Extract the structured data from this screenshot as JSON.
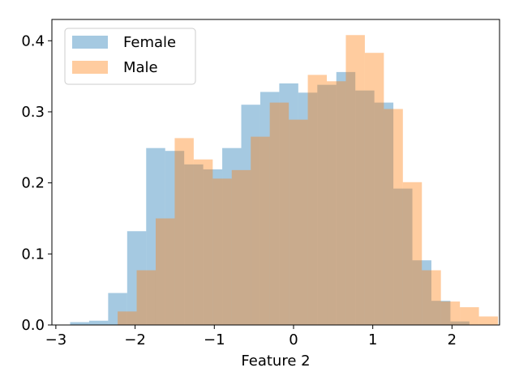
{
  "chart_data": {
    "type": "bar",
    "subtype": "overlaid-histogram",
    "title": "",
    "xlabel": "Feature 2",
    "ylabel": "",
    "xlim": [
      -3.05,
      2.6
    ],
    "ylim": [
      0,
      0.43
    ],
    "xticks": [
      -3,
      -2,
      -1,
      0,
      1,
      2
    ],
    "xtick_labels": [
      "−3",
      "−2",
      "−1",
      "0",
      "1",
      "2"
    ],
    "yticks": [
      0.0,
      0.1,
      0.2,
      0.3,
      0.4
    ],
    "ytick_labels": [
      "0.0",
      "0.1",
      "0.2",
      "0.3",
      "0.4"
    ],
    "grid": false,
    "legend_position": "top-left",
    "series": [
      {
        "name": "Female",
        "color": "#1f77b4",
        "alpha": 0.4,
        "bins": [
          {
            "x0": -2.82,
            "x1": -2.58,
            "value": 0.004
          },
          {
            "x0": -2.58,
            "x1": -2.34,
            "value": 0.006
          },
          {
            "x0": -2.34,
            "x1": -2.1,
            "value": 0.045
          },
          {
            "x0": -2.1,
            "x1": -1.86,
            "value": 0.132
          },
          {
            "x0": -1.86,
            "x1": -1.62,
            "value": 0.249
          },
          {
            "x0": -1.62,
            "x1": -1.38,
            "value": 0.245
          },
          {
            "x0": -1.38,
            "x1": -1.14,
            "value": 0.226
          },
          {
            "x0": -1.14,
            "x1": -0.9,
            "value": 0.219
          },
          {
            "x0": -0.9,
            "x1": -0.66,
            "value": 0.249
          },
          {
            "x0": -0.66,
            "x1": -0.42,
            "value": 0.31
          },
          {
            "x0": -0.42,
            "x1": -0.18,
            "value": 0.328
          },
          {
            "x0": -0.18,
            "x1": 0.06,
            "value": 0.34
          },
          {
            "x0": 0.06,
            "x1": 0.3,
            "value": 0.327
          },
          {
            "x0": 0.3,
            "x1": 0.54,
            "value": 0.338
          },
          {
            "x0": 0.54,
            "x1": 0.78,
            "value": 0.356
          },
          {
            "x0": 0.78,
            "x1": 1.02,
            "value": 0.33
          },
          {
            "x0": 1.02,
            "x1": 1.26,
            "value": 0.313
          },
          {
            "x0": 1.26,
            "x1": 1.5,
            "value": 0.192
          },
          {
            "x0": 1.5,
            "x1": 1.74,
            "value": 0.091
          },
          {
            "x0": 1.74,
            "x1": 1.98,
            "value": 0.034
          },
          {
            "x0": 1.98,
            "x1": 2.22,
            "value": 0.005
          }
        ]
      },
      {
        "name": "Male",
        "color": "#ff7f0e",
        "alpha": 0.4,
        "bins": [
          {
            "x0": -2.22,
            "x1": -1.98,
            "value": 0.019
          },
          {
            "x0": -1.98,
            "x1": -1.74,
            "value": 0.077
          },
          {
            "x0": -1.74,
            "x1": -1.5,
            "value": 0.15
          },
          {
            "x0": -1.5,
            "x1": -1.26,
            "value": 0.263
          },
          {
            "x0": -1.26,
            "x1": -1.02,
            "value": 0.233
          },
          {
            "x0": -1.02,
            "x1": -0.78,
            "value": 0.206
          },
          {
            "x0": -0.78,
            "x1": -0.54,
            "value": 0.218
          },
          {
            "x0": -0.54,
            "x1": -0.3,
            "value": 0.265
          },
          {
            "x0": -0.3,
            "x1": -0.06,
            "value": 0.313
          },
          {
            "x0": -0.06,
            "x1": 0.18,
            "value": 0.289
          },
          {
            "x0": 0.18,
            "x1": 0.42,
            "value": 0.352
          },
          {
            "x0": 0.42,
            "x1": 0.66,
            "value": 0.343
          },
          {
            "x0": 0.66,
            "x1": 0.9,
            "value": 0.408
          },
          {
            "x0": 0.9,
            "x1": 1.14,
            "value": 0.383
          },
          {
            "x0": 1.14,
            "x1": 1.38,
            "value": 0.304
          },
          {
            "x0": 1.38,
            "x1": 1.62,
            "value": 0.201
          },
          {
            "x0": 1.62,
            "x1": 1.86,
            "value": 0.077
          },
          {
            "x0": 1.86,
            "x1": 2.1,
            "value": 0.033
          },
          {
            "x0": 2.1,
            "x1": 2.34,
            "value": 0.025
          },
          {
            "x0": 2.34,
            "x1": 2.58,
            "value": 0.012
          }
        ]
      }
    ]
  }
}
